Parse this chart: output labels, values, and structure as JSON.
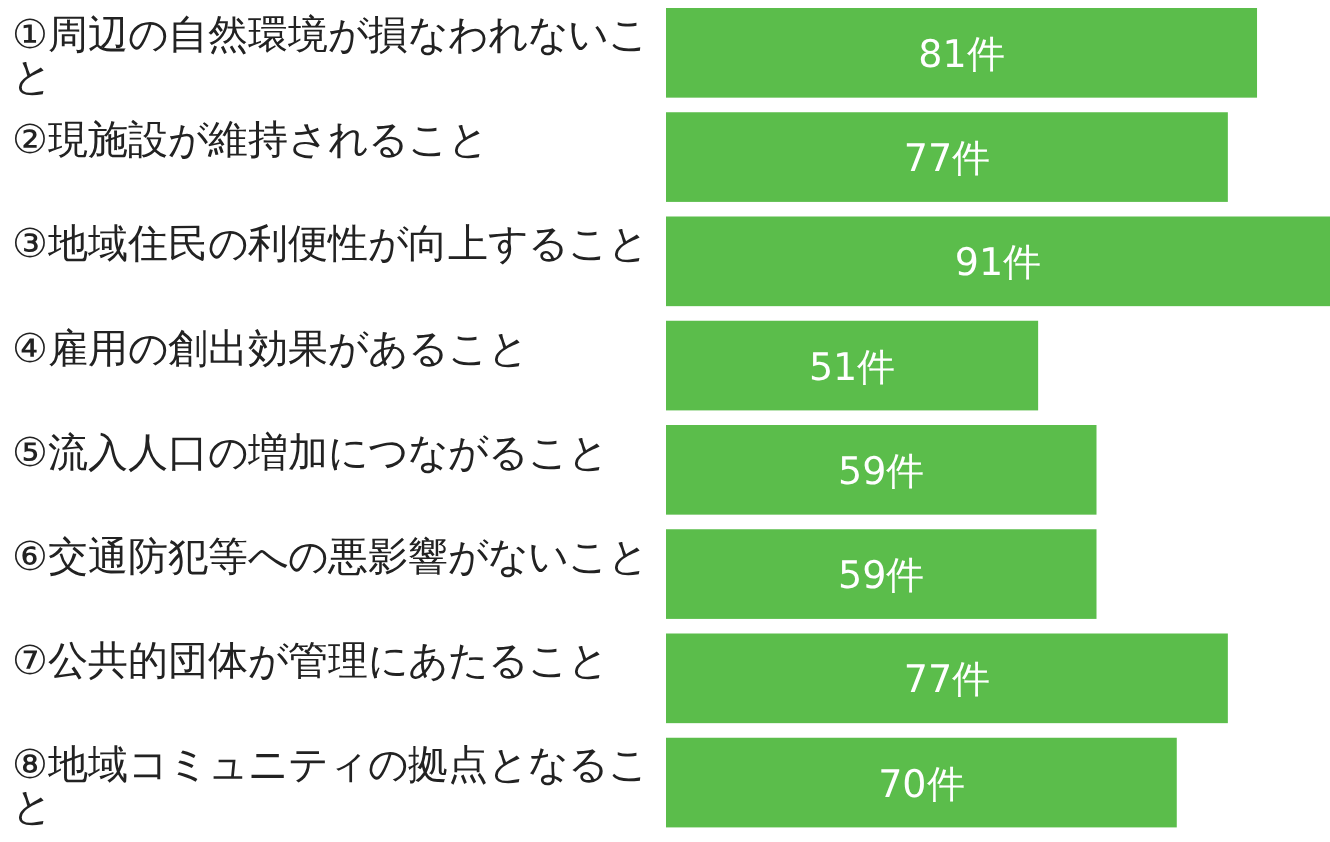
{
  "chart_data": {
    "type": "bar",
    "orientation": "horizontal",
    "color": "#5bbd4b",
    "categories": [
      "①周辺の自然環境が損なわれないこと",
      "②現施設が維持されること",
      "③地域住民の利便性が向上すること",
      "④雇用の創出効果があること",
      "⑤流入人口の増加につながること",
      "⑥交通防犯等への悪影響がないこと",
      "⑦公共的団体が管理にあたること",
      "⑧地域コミュニティの拠点となること"
    ],
    "values": [
      81,
      77,
      91,
      51,
      59,
      59,
      77,
      70
    ],
    "value_labels": [
      "81件",
      "77件",
      "91件",
      "51件",
      "59件",
      "59件",
      "77件",
      "70件"
    ],
    "tick_labels": "y"
  }
}
